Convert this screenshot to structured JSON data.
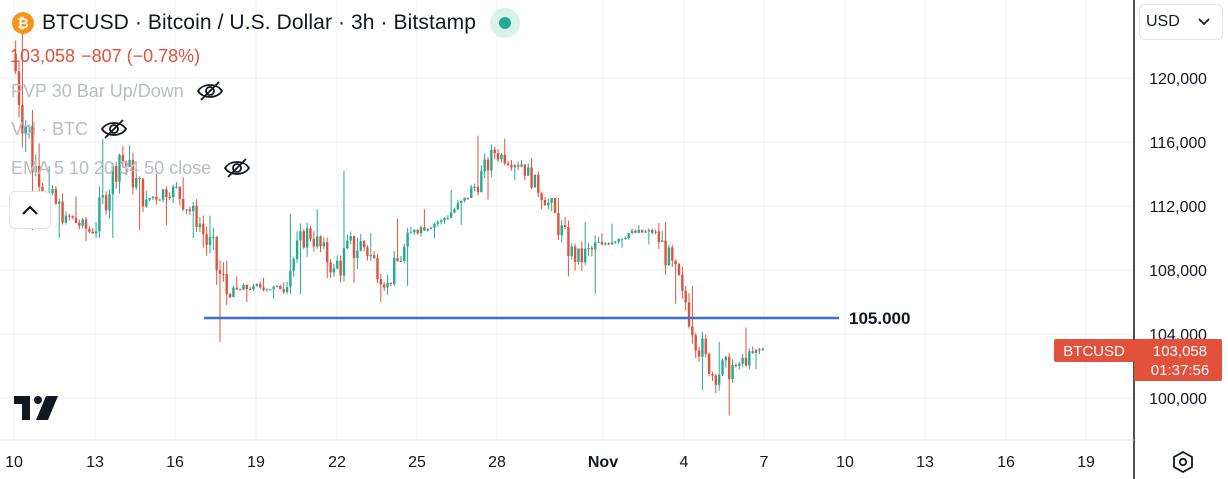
{
  "header": {
    "title": "BTCUSD · Bitcoin / U.S. Dollar · 3h · Bitstamp",
    "coin_glyph": "₿",
    "coin_color": "#f7931a",
    "status_color": "#22ab94"
  },
  "quote": {
    "price": "103,058",
    "change": "−807 (−0.78%)",
    "color": "#e2513c"
  },
  "indicators": [
    {
      "label": "PVP 30 Bar Up/Down",
      "icon": "eye-off-icon"
    },
    {
      "label": "Vol · BTC",
      "icon": "eye-off-icon"
    },
    {
      "label": "EMA 5 10 20 34 50 close",
      "icon": "eye-off-icon"
    }
  ],
  "currency": {
    "label": "USD"
  },
  "price_axis": {
    "ticks": [
      "120,000",
      "116,000",
      "112,000",
      "108,000",
      "104,000",
      "100,000"
    ],
    "last_price_label": "103,058",
    "countdown": "01:37:56",
    "symbol_label": "BTCUSD"
  },
  "time_axis": {
    "ticks": [
      "10",
      "13",
      "16",
      "19",
      "22",
      "25",
      "28",
      "Nov",
      "4",
      "7",
      "10",
      "13",
      "16",
      "19"
    ]
  },
  "chart_data": {
    "type": "candlestick",
    "symbol": "BTCUSD",
    "interval": "3h",
    "y_range": [
      97600,
      123200
    ],
    "up_color": "#22ab94",
    "down_color": "#e2513c",
    "ohlc_approx": [
      {
        "date": "Oct 10",
        "open": 121500,
        "close": 113200,
        "low": 110500,
        "high": 123000
      },
      {
        "date": "Oct 11",
        "open": 113200,
        "close": 111400,
        "low": 110000,
        "high": 114500
      },
      {
        "date": "Oct 12",
        "open": 111400,
        "close": 110300,
        "low": 109800,
        "high": 112600
      },
      {
        "date": "Oct 13",
        "open": 110300,
        "close": 115200,
        "low": 110000,
        "high": 116200
      },
      {
        "date": "Oct 14",
        "open": 115200,
        "close": 112400,
        "low": 110500,
        "high": 115800
      },
      {
        "date": "Oct 15",
        "open": 112400,
        "close": 113200,
        "low": 110800,
        "high": 114000
      },
      {
        "date": "Oct 16",
        "open": 113200,
        "close": 110900,
        "low": 110000,
        "high": 113800
      },
      {
        "date": "Oct 17",
        "open": 110900,
        "close": 106500,
        "low": 103500,
        "high": 111400
      },
      {
        "date": "Oct 18",
        "open": 106500,
        "close": 107000,
        "low": 106000,
        "high": 107600
      },
      {
        "date": "Oct 19",
        "open": 107000,
        "close": 106800,
        "low": 106200,
        "high": 107500
      },
      {
        "date": "Oct 20",
        "open": 106800,
        "close": 110600,
        "low": 106500,
        "high": 111500
      },
      {
        "date": "Oct 21",
        "open": 110600,
        "close": 108100,
        "low": 107500,
        "high": 111800
      },
      {
        "date": "Oct 22",
        "open": 108100,
        "close": 109800,
        "low": 107200,
        "high": 114200
      },
      {
        "date": "Oct 23",
        "open": 109800,
        "close": 107200,
        "low": 106000,
        "high": 110300
      },
      {
        "date": "Oct 24",
        "open": 107200,
        "close": 110500,
        "low": 107000,
        "high": 111200
      },
      {
        "date": "Oct 25",
        "open": 110500,
        "close": 111100,
        "low": 110000,
        "high": 111800
      },
      {
        "date": "Oct 26",
        "open": 111100,
        "close": 112500,
        "low": 110800,
        "high": 113000
      },
      {
        "date": "Oct 27",
        "open": 112500,
        "close": 115300,
        "low": 112400,
        "high": 116400
      },
      {
        "date": "Oct 28",
        "open": 115300,
        "close": 114600,
        "low": 113600,
        "high": 116200
      },
      {
        "date": "Oct 29",
        "open": 114600,
        "close": 112200,
        "low": 111800,
        "high": 115000
      },
      {
        "date": "Oct 30",
        "open": 112200,
        "close": 108500,
        "low": 107600,
        "high": 112500
      },
      {
        "date": "Oct 31",
        "open": 108500,
        "close": 109600,
        "low": 106500,
        "high": 111000
      },
      {
        "date": "Nov 1",
        "open": 109600,
        "close": 110300,
        "low": 109400,
        "high": 110900
      },
      {
        "date": "Nov 2",
        "open": 110300,
        "close": 110400,
        "low": 109600,
        "high": 110800
      },
      {
        "date": "Nov 3",
        "open": 110400,
        "close": 106700,
        "low": 105900,
        "high": 111000
      },
      {
        "date": "Nov 4",
        "open": 106700,
        "close": 101500,
        "low": 100500,
        "high": 107000
      },
      {
        "date": "Nov 5",
        "open": 101500,
        "close": 102000,
        "low": 98900,
        "high": 103500
      },
      {
        "date": "Nov 6",
        "open": 102000,
        "close": 103058,
        "low": 101800,
        "high": 104400
      }
    ],
    "horizontal_line": {
      "value": 105000,
      "label": "105.000",
      "color": "#3b6fd6"
    },
    "last_price": 103058
  }
}
